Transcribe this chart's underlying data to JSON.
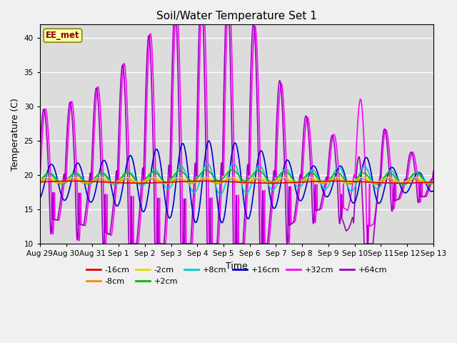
{
  "title": "Soil/Water Temperature Set 1",
  "xlabel": "Time",
  "ylabel": "Temperature (C)",
  "ylim": [
    10,
    42
  ],
  "xlim": [
    0,
    15
  ],
  "yticks": [
    10,
    15,
    20,
    25,
    30,
    35,
    40
  ],
  "xtick_labels": [
    "Aug 29",
    "Aug 30",
    "Aug 31",
    "Sep 1",
    "Sep 2",
    "Sep 3",
    "Sep 4",
    "Sep 5",
    "Sep 6",
    "Sep 7",
    "Sep 8",
    "Sep 9",
    "Sep 10",
    "Sep 11",
    "Sep 12",
    "Sep 13"
  ],
  "station_label": "EE_met",
  "plot_bg": "#dcdcdc",
  "fig_bg": "#f0f0f0",
  "series": {
    "-16cm": {
      "color": "#dd0000",
      "lw": 1.2
    },
    "-8cm": {
      "color": "#ff8800",
      "lw": 1.2
    },
    "-2cm": {
      "color": "#dddd00",
      "lw": 1.2
    },
    "+2cm": {
      "color": "#00bb00",
      "lw": 1.2
    },
    "+8cm": {
      "color": "#00cccc",
      "lw": 1.2
    },
    "+16cm": {
      "color": "#0000cc",
      "lw": 1.2
    },
    "+32cm": {
      "color": "#ff00ff",
      "lw": 1.2
    },
    "+64cm": {
      "color": "#9900bb",
      "lw": 1.2
    }
  },
  "series_order": [
    "-16cm",
    "-8cm",
    "-2cm",
    "+2cm",
    "+8cm",
    "+16cm",
    "+32cm",
    "+64cm"
  ],
  "legend_ncol": 6
}
